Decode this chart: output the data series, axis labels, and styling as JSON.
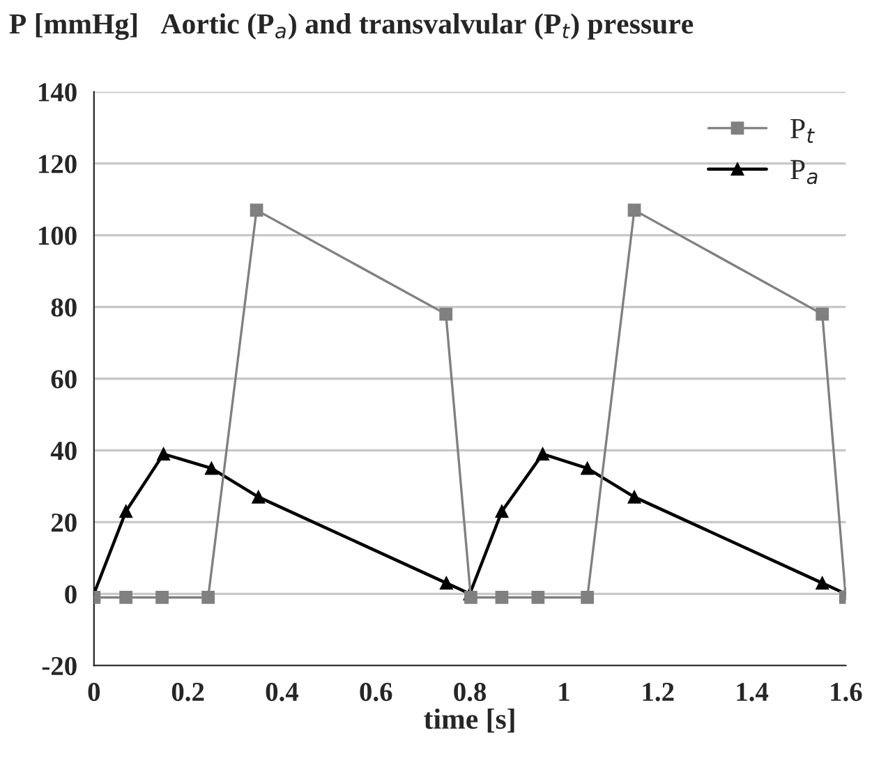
{
  "chart_data": {
    "type": "line",
    "title": "P [mmHg]   Aortic (P$_{a}$) and transvalvular (P$_{t}$) pressure",
    "xlabel": "time [s]",
    "series": [
      {
        "name": "P$_{t}$",
        "color": "#808080",
        "marker": "square",
        "x": [
          0,
          0.068,
          0.145,
          0.243,
          0.346,
          0.749,
          0.802,
          0.868,
          0.945,
          1.05,
          1.15,
          1.55,
          1.6
        ],
        "values": [
          -1,
          -1,
          -1,
          -1,
          107,
          78,
          -1,
          -1,
          -1,
          -1,
          107,
          78,
          -1
        ]
      },
      {
        "name": "P$_{a}$",
        "color": "#000000",
        "marker": "triangle",
        "x": [
          0,
          0.068,
          0.148,
          0.25,
          0.35,
          0.75,
          0.8,
          0.868,
          0.955,
          1.05,
          1.15,
          1.55,
          1.6
        ],
        "values": [
          0,
          23,
          39,
          35,
          27,
          3,
          0,
          23,
          39,
          35,
          27,
          3,
          0
        ]
      }
    ],
    "xlim": [
      0,
      1.6
    ],
    "xticks": [
      0,
      0.2,
      0.4,
      0.6,
      0.8,
      1,
      1.2,
      1.4,
      1.6
    ],
    "ylim": [
      -20,
      140
    ],
    "yticks": [
      -20,
      0,
      20,
      40,
      60,
      80,
      100,
      120,
      140
    ],
    "grid": "y",
    "legend": "top right",
    "line_style": "solid"
  }
}
